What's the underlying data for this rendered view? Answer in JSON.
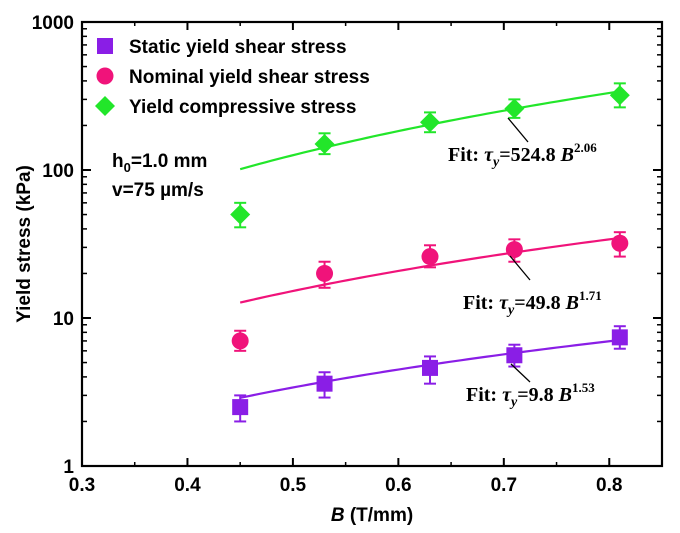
{
  "chart_data": {
    "type": "scatter",
    "xlabel": "B (T/mm)",
    "xlabel_var": "B",
    "xlabel_unit": " (T/mm)",
    "ylabel": "Yield stress (kPa)",
    "xlim": [
      0.3,
      0.85
    ],
    "ylim": [
      1,
      1000
    ],
    "yscale": "log",
    "x_ticks": [
      0.3,
      0.4,
      0.5,
      0.6,
      0.7,
      0.8
    ],
    "x_tick_labels": [
      "0.3",
      "0.4",
      "0.5",
      "0.6",
      "0.7",
      "0.8"
    ],
    "y_ticks": [
      1,
      10,
      100,
      1000
    ],
    "y_tick_labels": [
      "1",
      "10",
      "100",
      "1000"
    ],
    "legend_position": "top-left",
    "conditions": [
      "h0=1.0 mm",
      "v=75 µm/s"
    ],
    "series": [
      {
        "name": "Static yield shear stress",
        "marker": "square",
        "color": "#8a1ee6",
        "x": [
          0.45,
          0.53,
          0.63,
          0.71,
          0.81
        ],
        "y": [
          2.5,
          3.6,
          4.6,
          5.6,
          7.4
        ],
        "y_err_low": [
          2.0,
          2.9,
          3.6,
          4.7,
          6.2
        ],
        "y_err_high": [
          3.0,
          4.3,
          5.5,
          6.6,
          8.8
        ],
        "fit": {
          "coef": 9.8,
          "exp": 1.53,
          "x_range": [
            0.45,
            0.81
          ],
          "label": "Fit: τy=9.8 B1.53"
        }
      },
      {
        "name": "Nominal yield shear stress",
        "marker": "circle",
        "color": "#f0137a",
        "x": [
          0.45,
          0.53,
          0.63,
          0.71,
          0.81
        ],
        "y": [
          7.0,
          20,
          26,
          29,
          32
        ],
        "y_err_low": [
          6.0,
          16,
          22,
          24,
          26
        ],
        "y_err_high": [
          8.2,
          24,
          31,
          34,
          38
        ],
        "fit": {
          "coef": 49.8,
          "exp": 1.71,
          "x_range": [
            0.45,
            0.81
          ],
          "label": "Fit: τy=49.8 B1.71"
        }
      },
      {
        "name": "Yield compressive stress",
        "marker": "diamond",
        "color": "#22e62a",
        "x": [
          0.45,
          0.53,
          0.63,
          0.71,
          0.81
        ],
        "y": [
          50,
          150,
          210,
          260,
          320
        ],
        "y_err_low": [
          41,
          128,
          180,
          225,
          265
        ],
        "y_err_high": [
          60,
          177,
          245,
          300,
          385
        ],
        "fit": {
          "coef": 524.8,
          "exp": 2.06,
          "x_range": [
            0.45,
            0.81
          ],
          "label": "Fit: τy=524.8 B2.06"
        }
      }
    ],
    "fit_labels": [
      {
        "prefix": "Fit: ",
        "tau": "τ",
        "sub": "y",
        "eq": "=524.8 ",
        "var": "B",
        "sup": "2.06"
      },
      {
        "prefix": "Fit: ",
        "tau": "τ",
        "sub": "y",
        "eq": "=49.8 ",
        "var": "B",
        "sup": "1.71"
      },
      {
        "prefix": "Fit: ",
        "tau": "τ",
        "sub": "y",
        "eq": "=9.8 ",
        "var": "B",
        "sup": "1.53"
      }
    ]
  }
}
